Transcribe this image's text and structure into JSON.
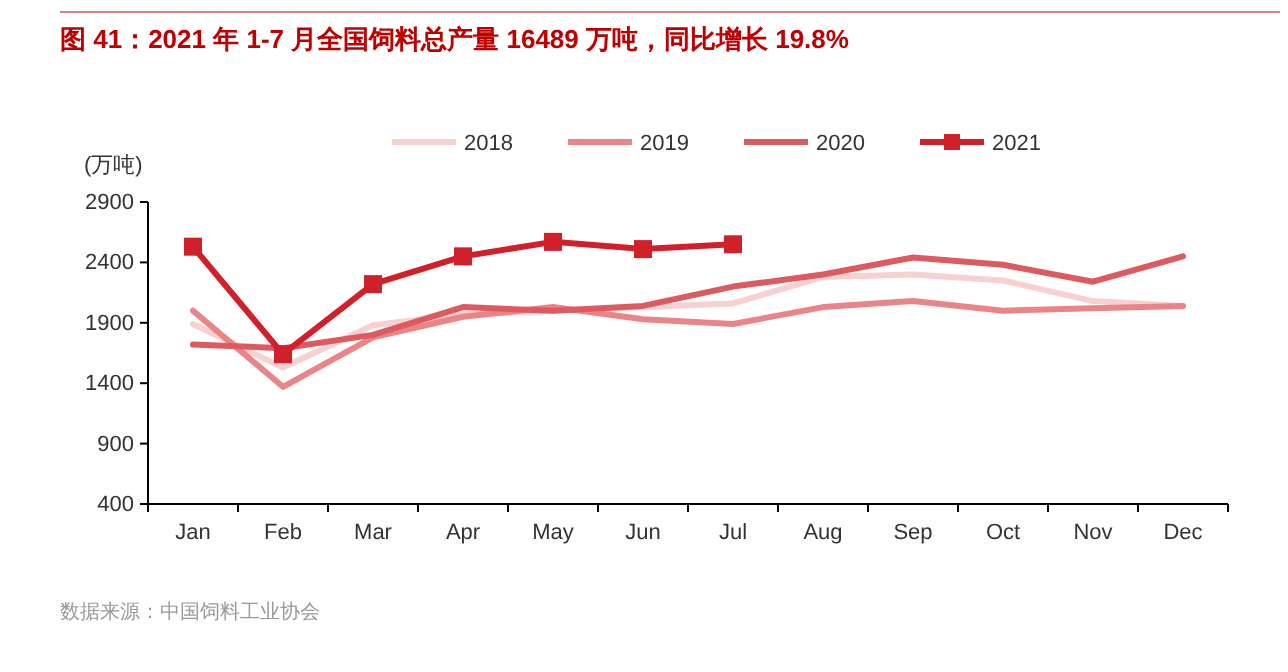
{
  "chart_data": {
    "type": "line",
    "title": "图 41：2021 年 1-7 月全国饲料总产量 16489 万吨，同比增长 19.8%",
    "ylabel": "(万吨)",
    "annotations": [
      "数据来源：中国饲料工业协会"
    ],
    "categories": [
      "Jan",
      "Feb",
      "Mar",
      "Apr",
      "May",
      "Jun",
      "Jul",
      "Aug",
      "Sep",
      "Oct",
      "Nov",
      "Dec"
    ],
    "ylim": [
      400,
      2900
    ],
    "yticks": [
      400,
      900,
      1400,
      1900,
      2400,
      2900
    ],
    "legend": "top",
    "grid": false,
    "series": [
      {
        "name": "2018",
        "color": "#f7d0d0",
        "marker": "none",
        "values": [
          1890,
          1530,
          1880,
          1970,
          2000,
          2030,
          2060,
          2280,
          2300,
          2250,
          2080,
          2040
        ]
      },
      {
        "name": "2019",
        "color": "#e98586",
        "marker": "none",
        "values": [
          2000,
          1370,
          1780,
          1950,
          2030,
          1930,
          1890,
          2030,
          2080,
          2000,
          2020,
          2040
        ]
      },
      {
        "name": "2020",
        "color": "#dd5a60",
        "marker": "none",
        "values": [
          1720,
          1690,
          1800,
          2030,
          2000,
          2040,
          2200,
          2300,
          2440,
          2380,
          2240,
          2450
        ]
      },
      {
        "name": "2021",
        "color": "#d0202a",
        "marker": "square",
        "values": [
          2530,
          1640,
          2220,
          2450,
          2570,
          2510,
          2550,
          null,
          null,
          null,
          null,
          null
        ]
      }
    ]
  }
}
